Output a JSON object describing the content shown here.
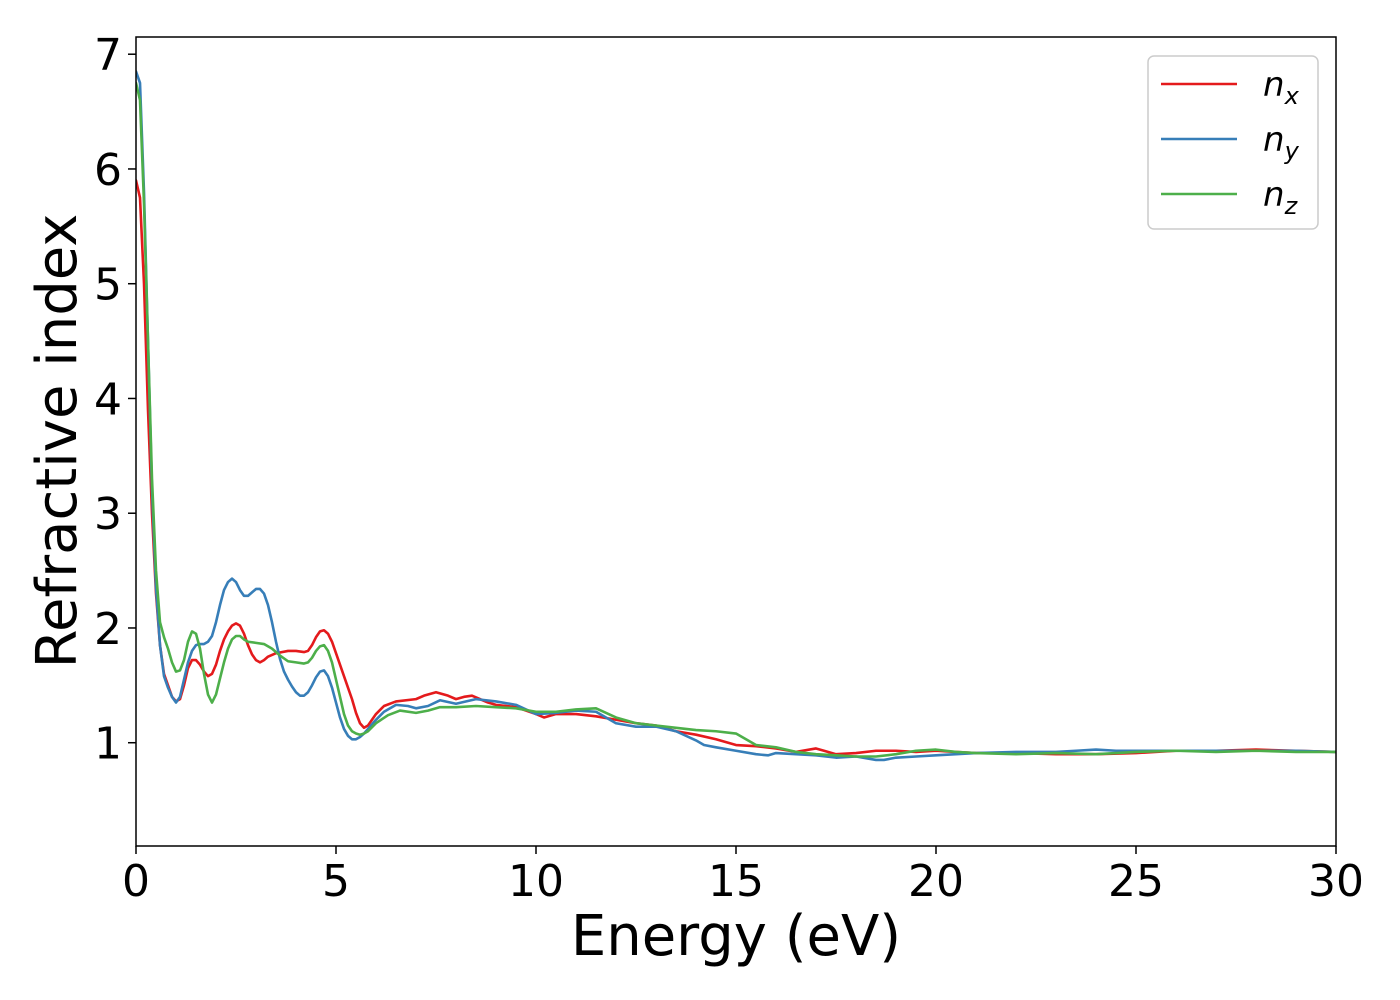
{
  "chart_data": {
    "type": "line",
    "title": "",
    "xlabel": "Energy (eV)",
    "ylabel": "Refractive index",
    "xlim": [
      0,
      30
    ],
    "ylim": [
      0.1,
      7.15
    ],
    "xticks": [
      0,
      5,
      10,
      15,
      20,
      25,
      30
    ],
    "yticks": [
      1,
      2,
      3,
      4,
      5,
      6,
      7
    ],
    "grid": false,
    "legend_position": "top-right",
    "series": [
      {
        "name": "n_x",
        "label_base": "n",
        "label_sub": "x",
        "color": "#e41a1c",
        "points": [
          [
            0,
            5.9
          ],
          [
            0.1,
            5.75
          ],
          [
            0.2,
            5.0
          ],
          [
            0.3,
            3.9
          ],
          [
            0.4,
            3.0
          ],
          [
            0.5,
            2.3
          ],
          [
            0.6,
            1.85
          ],
          [
            0.7,
            1.6
          ],
          [
            0.8,
            1.5
          ],
          [
            0.9,
            1.4
          ],
          [
            1.0,
            1.36
          ],
          [
            1.1,
            1.38
          ],
          [
            1.2,
            1.5
          ],
          [
            1.3,
            1.65
          ],
          [
            1.4,
            1.72
          ],
          [
            1.5,
            1.72
          ],
          [
            1.6,
            1.68
          ],
          [
            1.7,
            1.62
          ],
          [
            1.8,
            1.58
          ],
          [
            1.9,
            1.6
          ],
          [
            2.0,
            1.68
          ],
          [
            2.1,
            1.8
          ],
          [
            2.2,
            1.9
          ],
          [
            2.3,
            1.97
          ],
          [
            2.4,
            2.02
          ],
          [
            2.5,
            2.04
          ],
          [
            2.6,
            2.02
          ],
          [
            2.7,
            1.95
          ],
          [
            2.8,
            1.85
          ],
          [
            2.9,
            1.77
          ],
          [
            3.0,
            1.72
          ],
          [
            3.1,
            1.7
          ],
          [
            3.2,
            1.72
          ],
          [
            3.3,
            1.75
          ],
          [
            3.5,
            1.78
          ],
          [
            3.8,
            1.8
          ],
          [
            4.0,
            1.8
          ],
          [
            4.2,
            1.79
          ],
          [
            4.3,
            1.8
          ],
          [
            4.4,
            1.85
          ],
          [
            4.5,
            1.92
          ],
          [
            4.6,
            1.97
          ],
          [
            4.7,
            1.98
          ],
          [
            4.8,
            1.95
          ],
          [
            4.9,
            1.88
          ],
          [
            5.0,
            1.78
          ],
          [
            5.1,
            1.68
          ],
          [
            5.2,
            1.58
          ],
          [
            5.3,
            1.48
          ],
          [
            5.4,
            1.38
          ],
          [
            5.5,
            1.26
          ],
          [
            5.6,
            1.17
          ],
          [
            5.7,
            1.13
          ],
          [
            5.8,
            1.15
          ],
          [
            5.9,
            1.2
          ],
          [
            6.0,
            1.25
          ],
          [
            6.2,
            1.32
          ],
          [
            6.5,
            1.36
          ],
          [
            7.0,
            1.38
          ],
          [
            7.2,
            1.41
          ],
          [
            7.5,
            1.44
          ],
          [
            7.8,
            1.41
          ],
          [
            8.0,
            1.38
          ],
          [
            8.2,
            1.4
          ],
          [
            8.4,
            1.41
          ],
          [
            8.6,
            1.38
          ],
          [
            8.8,
            1.35
          ],
          [
            9.0,
            1.33
          ],
          [
            9.5,
            1.31
          ],
          [
            10.0,
            1.25
          ],
          [
            10.2,
            1.22
          ],
          [
            10.5,
            1.25
          ],
          [
            11.0,
            1.25
          ],
          [
            11.5,
            1.23
          ],
          [
            12.0,
            1.2
          ],
          [
            12.5,
            1.17
          ],
          [
            13.0,
            1.15
          ],
          [
            13.5,
            1.1
          ],
          [
            14.0,
            1.07
          ],
          [
            14.5,
            1.03
          ],
          [
            15.0,
            0.98
          ],
          [
            15.5,
            0.97
          ],
          [
            16.0,
            0.95
          ],
          [
            16.5,
            0.92
          ],
          [
            17.0,
            0.95
          ],
          [
            17.2,
            0.93
          ],
          [
            17.5,
            0.9
          ],
          [
            18.0,
            0.91
          ],
          [
            18.5,
            0.93
          ],
          [
            19.0,
            0.93
          ],
          [
            19.5,
            0.92
          ],
          [
            20.0,
            0.93
          ],
          [
            20.5,
            0.92
          ],
          [
            21.0,
            0.91
          ],
          [
            22.0,
            0.91
          ],
          [
            23.0,
            0.9
          ],
          [
            24.0,
            0.9
          ],
          [
            25.0,
            0.91
          ],
          [
            26.0,
            0.93
          ],
          [
            27.0,
            0.93
          ],
          [
            28.0,
            0.94
          ],
          [
            29.0,
            0.93
          ],
          [
            30.0,
            0.92
          ]
        ]
      },
      {
        "name": "n_y",
        "label_base": "n",
        "label_sub": "y",
        "color": "#377eb8",
        "points": [
          [
            0,
            6.85
          ],
          [
            0.1,
            6.75
          ],
          [
            0.2,
            5.8
          ],
          [
            0.3,
            4.5
          ],
          [
            0.4,
            3.2
          ],
          [
            0.5,
            2.35
          ],
          [
            0.6,
            1.85
          ],
          [
            0.7,
            1.58
          ],
          [
            0.8,
            1.48
          ],
          [
            0.9,
            1.4
          ],
          [
            1.0,
            1.35
          ],
          [
            1.1,
            1.4
          ],
          [
            1.2,
            1.55
          ],
          [
            1.3,
            1.7
          ],
          [
            1.4,
            1.8
          ],
          [
            1.5,
            1.85
          ],
          [
            1.6,
            1.86
          ],
          [
            1.7,
            1.86
          ],
          [
            1.8,
            1.88
          ],
          [
            1.9,
            1.93
          ],
          [
            2.0,
            2.05
          ],
          [
            2.1,
            2.2
          ],
          [
            2.2,
            2.33
          ],
          [
            2.3,
            2.4
          ],
          [
            2.4,
            2.43
          ],
          [
            2.5,
            2.4
          ],
          [
            2.6,
            2.33
          ],
          [
            2.7,
            2.28
          ],
          [
            2.8,
            2.28
          ],
          [
            2.9,
            2.31
          ],
          [
            3.0,
            2.34
          ],
          [
            3.1,
            2.34
          ],
          [
            3.2,
            2.3
          ],
          [
            3.3,
            2.2
          ],
          [
            3.4,
            2.05
          ],
          [
            3.5,
            1.88
          ],
          [
            3.6,
            1.73
          ],
          [
            3.7,
            1.62
          ],
          [
            3.8,
            1.55
          ],
          [
            3.9,
            1.49
          ],
          [
            4.0,
            1.44
          ],
          [
            4.1,
            1.41
          ],
          [
            4.2,
            1.41
          ],
          [
            4.3,
            1.44
          ],
          [
            4.4,
            1.5
          ],
          [
            4.5,
            1.57
          ],
          [
            4.6,
            1.62
          ],
          [
            4.7,
            1.63
          ],
          [
            4.8,
            1.58
          ],
          [
            4.9,
            1.48
          ],
          [
            5.0,
            1.35
          ],
          [
            5.1,
            1.22
          ],
          [
            5.2,
            1.12
          ],
          [
            5.3,
            1.06
          ],
          [
            5.4,
            1.03
          ],
          [
            5.5,
            1.03
          ],
          [
            5.6,
            1.05
          ],
          [
            5.7,
            1.08
          ],
          [
            5.8,
            1.12
          ],
          [
            6.0,
            1.2
          ],
          [
            6.2,
            1.27
          ],
          [
            6.5,
            1.33
          ],
          [
            6.8,
            1.32
          ],
          [
            7.0,
            1.3
          ],
          [
            7.3,
            1.32
          ],
          [
            7.6,
            1.37
          ],
          [
            8.0,
            1.34
          ],
          [
            8.5,
            1.38
          ],
          [
            9.0,
            1.36
          ],
          [
            9.5,
            1.33
          ],
          [
            10.0,
            1.25
          ],
          [
            10.5,
            1.26
          ],
          [
            11.0,
            1.28
          ],
          [
            11.5,
            1.27
          ],
          [
            12.0,
            1.17
          ],
          [
            12.5,
            1.14
          ],
          [
            13.0,
            1.14
          ],
          [
            13.5,
            1.1
          ],
          [
            14.0,
            1.02
          ],
          [
            14.2,
            0.98
          ],
          [
            14.5,
            0.96
          ],
          [
            15.0,
            0.93
          ],
          [
            15.5,
            0.9
          ],
          [
            15.8,
            0.89
          ],
          [
            16.0,
            0.91
          ],
          [
            16.5,
            0.9
          ],
          [
            17.0,
            0.89
          ],
          [
            17.5,
            0.87
          ],
          [
            18.0,
            0.88
          ],
          [
            18.5,
            0.85
          ],
          [
            18.7,
            0.85
          ],
          [
            19.0,
            0.87
          ],
          [
            19.5,
            0.88
          ],
          [
            20.0,
            0.89
          ],
          [
            20.5,
            0.9
          ],
          [
            21.0,
            0.91
          ],
          [
            22.0,
            0.92
          ],
          [
            23.0,
            0.92
          ],
          [
            23.5,
            0.93
          ],
          [
            24.0,
            0.94
          ],
          [
            24.5,
            0.93
          ],
          [
            25.0,
            0.93
          ],
          [
            26.0,
            0.93
          ],
          [
            27.0,
            0.93
          ],
          [
            28.0,
            0.93
          ],
          [
            29.0,
            0.93
          ],
          [
            30.0,
            0.92
          ]
        ]
      },
      {
        "name": "n_z",
        "label_base": "n",
        "label_sub": "z",
        "color": "#4daf4a",
        "points": [
          [
            0,
            6.75
          ],
          [
            0.1,
            6.6
          ],
          [
            0.2,
            5.7
          ],
          [
            0.3,
            4.5
          ],
          [
            0.4,
            3.3
          ],
          [
            0.5,
            2.5
          ],
          [
            0.6,
            2.05
          ],
          [
            0.7,
            1.92
          ],
          [
            0.8,
            1.82
          ],
          [
            0.9,
            1.7
          ],
          [
            1.0,
            1.62
          ],
          [
            1.1,
            1.63
          ],
          [
            1.2,
            1.72
          ],
          [
            1.3,
            1.88
          ],
          [
            1.4,
            1.97
          ],
          [
            1.5,
            1.95
          ],
          [
            1.6,
            1.82
          ],
          [
            1.7,
            1.6
          ],
          [
            1.8,
            1.42
          ],
          [
            1.9,
            1.35
          ],
          [
            2.0,
            1.42
          ],
          [
            2.1,
            1.56
          ],
          [
            2.2,
            1.7
          ],
          [
            2.3,
            1.82
          ],
          [
            2.4,
            1.9
          ],
          [
            2.5,
            1.93
          ],
          [
            2.6,
            1.93
          ],
          [
            2.7,
            1.9
          ],
          [
            2.8,
            1.88
          ],
          [
            3.0,
            1.87
          ],
          [
            3.2,
            1.86
          ],
          [
            3.4,
            1.82
          ],
          [
            3.6,
            1.76
          ],
          [
            3.8,
            1.71
          ],
          [
            4.0,
            1.7
          ],
          [
            4.2,
            1.69
          ],
          [
            4.3,
            1.7
          ],
          [
            4.4,
            1.74
          ],
          [
            4.5,
            1.8
          ],
          [
            4.6,
            1.84
          ],
          [
            4.7,
            1.85
          ],
          [
            4.8,
            1.8
          ],
          [
            4.9,
            1.7
          ],
          [
            5.0,
            1.55
          ],
          [
            5.1,
            1.4
          ],
          [
            5.2,
            1.25
          ],
          [
            5.3,
            1.15
          ],
          [
            5.4,
            1.1
          ],
          [
            5.5,
            1.08
          ],
          [
            5.6,
            1.07
          ],
          [
            5.7,
            1.08
          ],
          [
            5.8,
            1.1
          ],
          [
            6.0,
            1.17
          ],
          [
            6.3,
            1.24
          ],
          [
            6.6,
            1.28
          ],
          [
            7.0,
            1.26
          ],
          [
            7.3,
            1.28
          ],
          [
            7.6,
            1.31
          ],
          [
            8.0,
            1.31
          ],
          [
            8.5,
            1.32
          ],
          [
            9.0,
            1.31
          ],
          [
            9.5,
            1.3
          ],
          [
            10.0,
            1.27
          ],
          [
            10.5,
            1.27
          ],
          [
            11.0,
            1.29
          ],
          [
            11.5,
            1.3
          ],
          [
            12.0,
            1.22
          ],
          [
            12.5,
            1.17
          ],
          [
            13.0,
            1.15
          ],
          [
            13.5,
            1.13
          ],
          [
            14.0,
            1.11
          ],
          [
            14.5,
            1.1
          ],
          [
            15.0,
            1.08
          ],
          [
            15.5,
            0.98
          ],
          [
            16.0,
            0.96
          ],
          [
            16.5,
            0.92
          ],
          [
            17.0,
            0.9
          ],
          [
            17.5,
            0.89
          ],
          [
            18.0,
            0.88
          ],
          [
            18.5,
            0.88
          ],
          [
            19.0,
            0.9
          ],
          [
            19.5,
            0.93
          ],
          [
            20.0,
            0.94
          ],
          [
            20.5,
            0.92
          ],
          [
            21.0,
            0.91
          ],
          [
            22.0,
            0.9
          ],
          [
            23.0,
            0.91
          ],
          [
            24.0,
            0.9
          ],
          [
            25.0,
            0.92
          ],
          [
            26.0,
            0.93
          ],
          [
            27.0,
            0.92
          ],
          [
            28.0,
            0.93
          ],
          [
            29.0,
            0.92
          ],
          [
            30.0,
            0.92
          ]
        ]
      }
    ]
  }
}
